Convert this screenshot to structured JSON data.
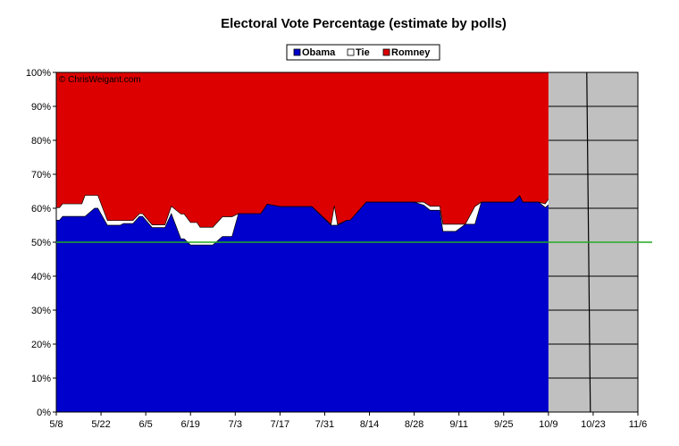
{
  "chart_data": {
    "type": "area",
    "title": "Electoral Vote Percentage (estimate by polls)",
    "watermark": "© ChrisWeigant.com",
    "xlabel": "",
    "ylabel": "",
    "x_tick_labels": [
      "5/8",
      "5/22",
      "6/5",
      "6/19",
      "7/3",
      "7/17",
      "7/31",
      "8/14",
      "8/28",
      "9/11",
      "9/25",
      "10/9",
      "10/23",
      "11/6"
    ],
    "y_tick_labels": [
      "0%",
      "10%",
      "20%",
      "30%",
      "40%",
      "50%",
      "60%",
      "70%",
      "80%",
      "90%",
      "100%"
    ],
    "ylim": [
      0,
      100
    ],
    "x_range_days": [
      0,
      182
    ],
    "x_start_label": "5/8",
    "grid": "horizontal in future region only",
    "legend_position": "top-center",
    "reference_line": {
      "value": 50,
      "color": "#22aa22"
    },
    "future_shading": {
      "from_label": "10/9",
      "color": "#c0c0c0"
    },
    "colors": {
      "obama": "#0000cc",
      "tie": "#ffffff",
      "romney": "#dd0000",
      "future": "#c0c0c0",
      "line50": "#22aa22"
    },
    "legend": [
      {
        "name": "Obama",
        "color": "#0000cc"
      },
      {
        "name": "Tie",
        "color": "#ffffff"
      },
      {
        "name": "Romney",
        "color": "#dd0000"
      }
    ],
    "series": [
      {
        "name": "Obama",
        "x": [
          0,
          1,
          2,
          5,
          8,
          9,
          12,
          13,
          16,
          17,
          20,
          21,
          24,
          26,
          27,
          30,
          31,
          33,
          34,
          36,
          39,
          40,
          42,
          44,
          45,
          47,
          49,
          52,
          55,
          57,
          59,
          61,
          64,
          66,
          70,
          75,
          80,
          86,
          87,
          88,
          91,
          92,
          97,
          98,
          103,
          105,
          106,
          107,
          110,
          112,
          115,
          117,
          120,
          121,
          124,
          125,
          128,
          131,
          133,
          136,
          140,
          143,
          145,
          146,
          148,
          150,
          151,
          153,
          155,
          156,
          157,
          159,
          161,
          163,
          164,
          165,
          166
        ],
        "y": [
          56.5,
          56.5,
          57.6,
          57.6,
          57.6,
          57.6,
          60.0,
          60.0,
          55.0,
          55.0,
          55.0,
          55.5,
          55.5,
          57.6,
          57.6,
          54.3,
          54.3,
          54.3,
          54.3,
          58.4,
          51.0,
          51.0,
          49.2,
          49.2,
          49.2,
          49.2,
          49.2,
          51.7,
          51.7,
          58.4,
          58.4,
          58.4,
          58.4,
          61.2,
          60.5,
          60.5,
          60.5,
          55.0,
          55.0,
          55.0,
          56.5,
          56.5,
          61.8,
          61.8,
          61.8,
          61.8,
          61.8,
          61.8,
          61.8,
          61.8,
          60.9,
          59.4,
          59.4,
          53.2,
          53.2,
          53.2,
          55.3,
          55.3,
          61.8,
          61.8,
          61.8,
          61.8,
          63.7,
          61.8,
          61.8,
          61.8,
          61.8,
          60.2,
          61.8,
          61.8,
          61.8,
          61.8,
          64.2,
          63.7,
          61.8,
          61.8,
          59.6
        ]
      },
      {
        "name": "Obama + Tie",
        "x": [
          0,
          1,
          2,
          5,
          8,
          9,
          12,
          13,
          16,
          17,
          20,
          21,
          24,
          26,
          27,
          30,
          31,
          33,
          34,
          36,
          39,
          40,
          42,
          44,
          45,
          47,
          49,
          52,
          55,
          57,
          59,
          61,
          64,
          66,
          70,
          75,
          80,
          86,
          87,
          88,
          91,
          92,
          97,
          98,
          103,
          105,
          106,
          107,
          110,
          112,
          115,
          117,
          120,
          121,
          124,
          125,
          128,
          131,
          133,
          136,
          140,
          143,
          145,
          146,
          148,
          150,
          151,
          153,
          155,
          156,
          157,
          159,
          161,
          163,
          164,
          165,
          166
        ],
        "y": [
          60.2,
          60.2,
          61.3,
          61.3,
          61.3,
          63.8,
          63.8,
          63.8,
          56.4,
          56.4,
          56.4,
          56.4,
          56.4,
          58.4,
          58.4,
          55.1,
          55.1,
          55.1,
          55.1,
          60.6,
          58.3,
          58.3,
          55.8,
          55.8,
          54.4,
          54.4,
          54.4,
          57.5,
          57.5,
          58.4,
          58.4,
          58.4,
          58.4,
          61.2,
          60.5,
          60.5,
          60.5,
          55.2,
          60.7,
          55.2,
          56.5,
          56.5,
          61.8,
          61.8,
          61.8,
          61.8,
          61.8,
          61.8,
          61.8,
          61.8,
          61.8,
          60.6,
          60.6,
          55.3,
          55.3,
          55.3,
          55.3,
          60.5,
          61.8,
          61.8,
          61.8,
          61.8,
          63.7,
          61.8,
          61.8,
          61.8,
          61.8,
          61.3,
          64.0,
          61.8,
          61.8,
          61.8,
          64.2,
          63.7,
          64.4,
          61.8,
          62.0
        ]
      }
    ]
  }
}
